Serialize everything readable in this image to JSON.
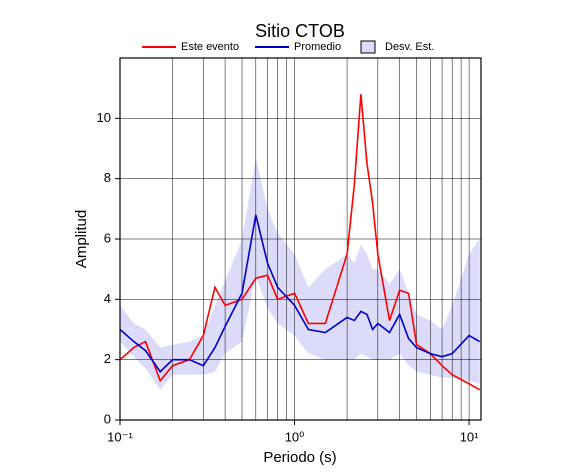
{
  "chart_data": {
    "type": "line",
    "title": "Sitio CTOB",
    "x_label": "Periodo (s)",
    "y_label": "Amplitud",
    "log_x": true,
    "grid": true,
    "xlim": [
      0.1,
      11.7
    ],
    "ylim": [
      0,
      12
    ],
    "xticks": [
      {
        "value": 0.1,
        "label": "10⁻¹"
      },
      {
        "value": 1,
        "label": "10⁰"
      },
      {
        "value": 10,
        "label": "10¹"
      }
    ],
    "yticks": [
      0,
      2,
      4,
      6,
      8,
      10
    ],
    "x": [
      0.1,
      0.12,
      0.14,
      0.17,
      0.2,
      0.25,
      0.3,
      0.35,
      0.4,
      0.5,
      0.6,
      0.7,
      0.8,
      1.0,
      1.2,
      1.5,
      2.0,
      2.2,
      2.4,
      2.6,
      2.8,
      3.0,
      3.5,
      4.0,
      4.5,
      5,
      6,
      7,
      8,
      10,
      11.5
    ],
    "series": [
      {
        "name": "Este evento",
        "color": "#ff0000",
        "values": [
          2.0,
          2.4,
          2.6,
          1.3,
          1.8,
          2.0,
          2.8,
          4.4,
          3.8,
          4.0,
          4.7,
          4.8,
          4.0,
          4.2,
          3.2,
          3.2,
          5.5,
          7.8,
          10.8,
          8.5,
          7.2,
          5.5,
          3.3,
          4.3,
          4.2,
          2.5,
          2.2,
          1.8,
          1.5,
          1.2,
          1.0
        ]
      },
      {
        "name": "Promedio",
        "color": "#0000cc",
        "values": [
          3.0,
          2.6,
          2.3,
          1.6,
          2.0,
          2.0,
          1.8,
          2.4,
          3.1,
          4.2,
          6.8,
          5.2,
          4.4,
          3.8,
          3.0,
          2.9,
          3.4,
          3.3,
          3.6,
          3.5,
          3.0,
          3.2,
          2.9,
          3.5,
          2.7,
          2.4,
          2.2,
          2.1,
          2.2,
          2.8,
          2.6
        ]
      },
      {
        "name": "Desv. Est.",
        "color": "#dcdcfa",
        "upper": [
          3.8,
          3.2,
          3.0,
          2.4,
          2.5,
          2.6,
          2.8,
          3.8,
          4.6,
          6.0,
          8.7,
          7.0,
          6.2,
          5.5,
          4.4,
          5.0,
          5.5,
          5.2,
          5.8,
          5.5,
          5.0,
          5.0,
          4.5,
          5.0,
          4.2,
          3.5,
          3.3,
          3.0,
          3.8,
          5.5,
          6.0
        ],
        "lower": [
          2.6,
          2.1,
          1.7,
          1.0,
          1.5,
          1.5,
          1.5,
          1.6,
          2.2,
          2.6,
          4.8,
          3.7,
          3.2,
          2.8,
          2.2,
          2.0,
          2.0,
          2.0,
          2.2,
          2.1,
          2.0,
          2.0,
          2.0,
          2.2,
          1.8,
          1.6,
          1.5,
          1.4,
          1.4,
          1.3,
          1.2
        ]
      }
    ]
  }
}
